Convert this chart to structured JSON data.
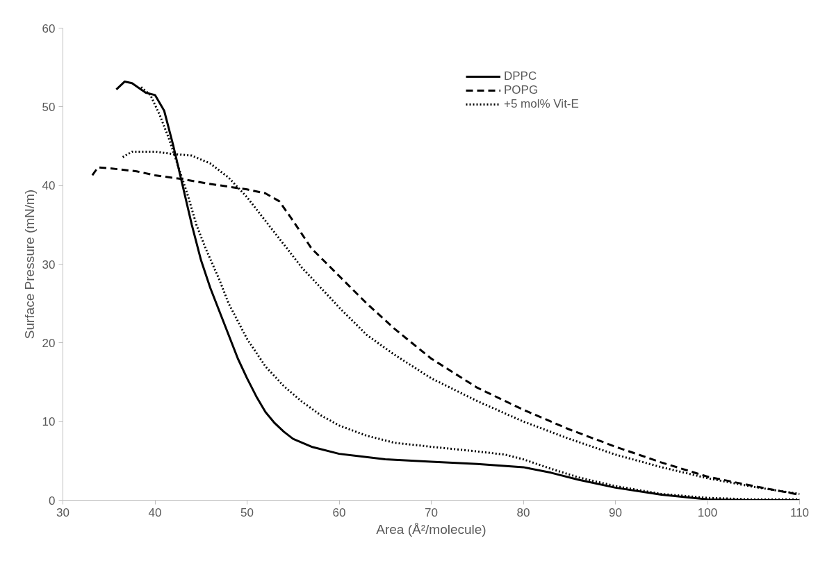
{
  "chart_data": {
    "type": "line",
    "xlabel": "Area (Å²/molecule)",
    "ylabel": "Surface Pressure (mN/m)",
    "xlim": [
      30,
      110
    ],
    "xticks": [
      30,
      40,
      50,
      60,
      70,
      80,
      90,
      100,
      110
    ],
    "ylim": [
      0,
      60
    ],
    "yticks": [
      0,
      10,
      20,
      30,
      40,
      50,
      60
    ],
    "grid": false,
    "legend": "top right",
    "marker": "none",
    "series": [
      {
        "name": "DPPC",
        "color": "#000000",
        "line_style": "solid",
        "x": [
          35.8,
          36.7,
          37.5,
          38.5,
          39,
          40,
          41,
          42,
          43,
          44,
          45,
          46,
          47,
          48,
          49,
          50,
          51,
          52,
          53,
          54,
          55,
          57,
          60,
          65,
          70,
          75,
          80,
          83,
          86,
          90,
          95,
          100,
          105,
          110
        ],
        "values": [
          52.2,
          53.2,
          53,
          52.2,
          51.8,
          51.5,
          49.5,
          45,
          40,
          35,
          30.5,
          27,
          24,
          21,
          18,
          15.5,
          13.2,
          11.2,
          9.8,
          8.7,
          7.8,
          6.8,
          5.9,
          5.2,
          4.9,
          4.6,
          4.2,
          3.5,
          2.6,
          1.6,
          0.7,
          0.1,
          0,
          0
        ]
      },
      {
        "name": "POPG",
        "color": "#000000",
        "line_style": "dashed",
        "x": [
          33.2,
          33.8,
          35,
          38,
          40,
          43,
          46,
          50,
          52,
          53.5,
          55,
          57,
          60,
          63,
          66,
          70,
          75,
          80,
          85,
          90,
          95,
          100,
          105,
          110
        ],
        "values": [
          41.3,
          42.3,
          42.2,
          41.8,
          41.3,
          40.8,
          40.2,
          39.5,
          39,
          38,
          35.5,
          32,
          28.5,
          25,
          21.8,
          18,
          14.3,
          11.5,
          9,
          6.8,
          4.8,
          3,
          1.8,
          0.7
        ]
      },
      {
        "name": "+5 mol% Vit-E",
        "color": "#000000",
        "line_style": "dotted",
        "x": [
          36.5,
          37.5,
          40,
          42,
          44,
          46,
          48,
          50,
          52,
          54,
          56,
          58,
          60,
          63,
          66,
          70,
          75,
          80,
          85,
          90,
          95,
          100,
          105,
          110
        ],
        "values": [
          43.6,
          44.3,
          44.3,
          44,
          43.8,
          42.8,
          41,
          38.5,
          35.5,
          32.5,
          29.5,
          27,
          24.5,
          21,
          18.5,
          15.5,
          12.6,
          10,
          7.8,
          5.8,
          4.2,
          2.8,
          1.7,
          0.8
        ]
      },
      {
        "color": "#000000",
        "line_style": "dotted",
        "x": [
          38.5,
          39.5,
          40.5,
          41.5,
          42.5,
          43.5,
          44.5,
          45.5,
          47,
          48,
          50,
          52,
          54,
          56,
          58,
          60,
          63,
          66,
          70,
          75,
          78,
          80,
          83,
          86,
          90,
          95,
          100,
          105,
          110
        ],
        "values": [
          52.5,
          51.5,
          49,
          46,
          42.5,
          39,
          35,
          32,
          28,
          25,
          20.5,
          17,
          14.5,
          12.5,
          10.8,
          9.5,
          8.2,
          7.3,
          6.8,
          6.2,
          5.8,
          5.2,
          4,
          2.9,
          1.8,
          0.8,
          0.3,
          0.1,
          0.1
        ]
      }
    ]
  }
}
